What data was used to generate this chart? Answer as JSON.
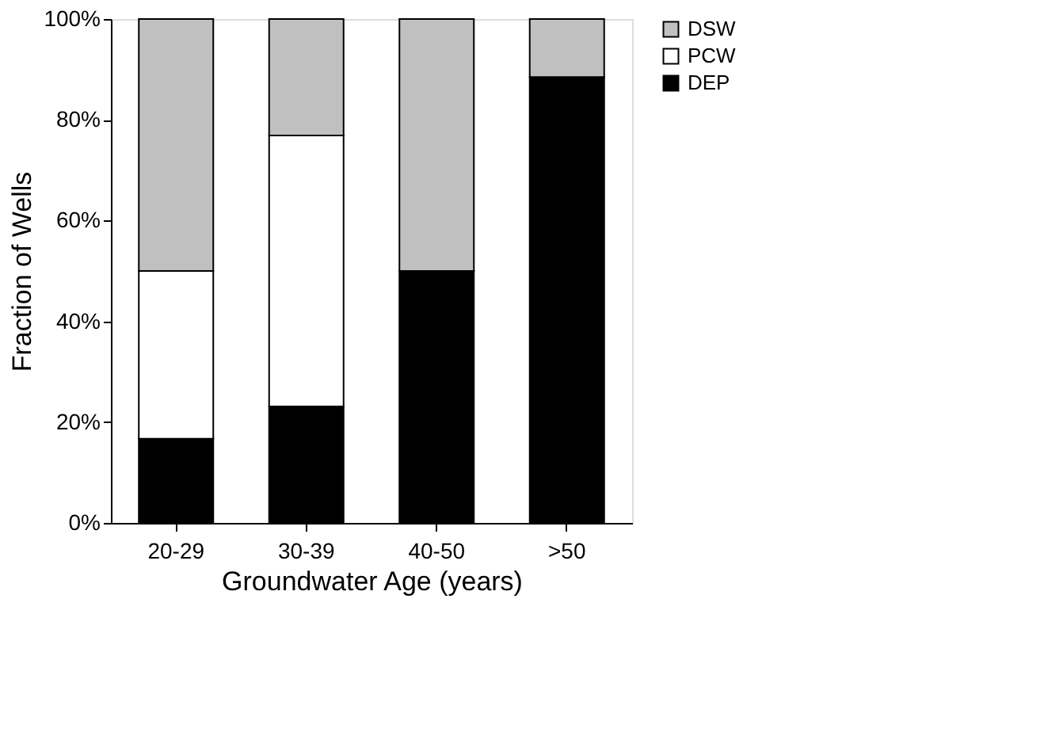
{
  "chart_data": {
    "type": "bar",
    "stacked": true,
    "xlabel": "Groundwater Age (years)",
    "ylabel": "Fraction of Wells",
    "categories": [
      "20-29",
      "30-39",
      "40-50",
      ">50"
    ],
    "series": [
      {
        "name": "DEP",
        "color": "#000000",
        "values": [
          16.7,
          23.1,
          50,
          88.5
        ]
      },
      {
        "name": "PCW",
        "color": "#ffffff",
        "values": [
          33.3,
          53.8,
          0,
          0
        ]
      },
      {
        "name": "DSW",
        "color": "#c0c0c0",
        "values": [
          50,
          23.1,
          50,
          11.5
        ]
      }
    ],
    "ylim": [
      0,
      100
    ],
    "yticks": [
      {
        "value": 0,
        "label": "0%"
      },
      {
        "value": 20,
        "label": "20%"
      },
      {
        "value": 40,
        "label": "40%"
      },
      {
        "value": 60,
        "label": "60%"
      },
      {
        "value": 80,
        "label": "80%"
      },
      {
        "value": 100,
        "label": "100%"
      }
    ],
    "grid": false,
    "legend": "right"
  }
}
